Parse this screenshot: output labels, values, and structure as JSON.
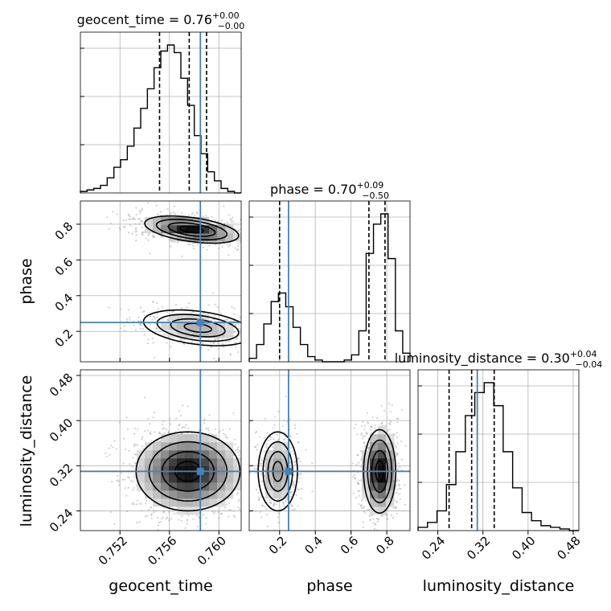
{
  "chart_data": {
    "type": "corner",
    "parameters": [
      "geocent_time",
      "phase",
      "luminosity_distance"
    ],
    "truth": {
      "geocent_time": 0.7585,
      "phase": 0.25,
      "luminosity_distance": 0.31
    },
    "ranges": {
      "geocent_time": [
        0.7488,
        0.7618
      ],
      "phase": [
        0.03,
        0.93
      ],
      "luminosity_distance": [
        0.205,
        0.49
      ]
    },
    "titles": {
      "geocent_time": {
        "label": "geocent_time = 0.76",
        "plus": "+0.00",
        "minus": "−0.00"
      },
      "phase": {
        "label": "phase = 0.70",
        "plus": "+0.09",
        "minus": "−0.50"
      },
      "luminosity_distance": {
        "label": "luminosity_distance = 0.30",
        "plus": "+0.04",
        "minus": "−0.04"
      }
    },
    "xlabels": [
      "geocent_time",
      "phase",
      "luminosity_distance"
    ],
    "ylabels": [
      "",
      "phase",
      "luminosity_distance"
    ],
    "ticks": {
      "geocent_time": {
        "values": [
          0.752,
          0.756,
          0.76
        ],
        "labels": [
          "0.752",
          "0.756",
          "0.760"
        ]
      },
      "phase": {
        "values": [
          0.2,
          0.4,
          0.6,
          0.8
        ],
        "labels": [
          "0.2",
          "0.4",
          "0.6",
          "0.8"
        ]
      },
      "luminosity_distance": {
        "values": [
          0.24,
          0.32,
          0.4,
          0.48
        ],
        "labels": [
          "0.24",
          "0.32",
          "0.40",
          "0.48"
        ]
      }
    },
    "quantiles": {
      "geocent_time": [
        0.7552,
        0.7576,
        0.759
      ],
      "phase": [
        0.2,
        0.7,
        0.79
      ],
      "luminosity_distance": [
        0.26,
        0.3,
        0.34
      ]
    },
    "histograms": {
      "geocent_time": {
        "edges_range": [
          0.7488,
          0.7618
        ],
        "counts": [
          1,
          2,
          3,
          5,
          10,
          17,
          22,
          31,
          43,
          56,
          69,
          83,
          94,
          98,
          93,
          76,
          58,
          38,
          26,
          14,
          8,
          3,
          1,
          0
        ]
      },
      "phase": {
        "edges_range": [
          0.03,
          0.93
        ],
        "counts": [
          2,
          10,
          22,
          35,
          40,
          32,
          20,
          10,
          3,
          1,
          0,
          0,
          0,
          1,
          4,
          18,
          63,
          80,
          86,
          60,
          18,
          5
        ]
      },
      "luminosity_distance": {
        "edges_range": [
          0.205,
          0.49
        ],
        "counts": [
          2,
          5,
          12,
          28,
          48,
          70,
          84,
          90,
          76,
          48,
          26,
          11,
          6,
          3,
          2,
          1,
          0
        ]
      }
    },
    "joint": [
      {
        "x": "geocent_time",
        "y": "phase",
        "clusters": [
          {
            "cx": 0.7578,
            "cy": 0.77,
            "sx": 0.0019,
            "sy": 0.038,
            "rho": -0.45,
            "weight": 0.66
          },
          {
            "cx": 0.7583,
            "cy": 0.22,
            "sx": 0.0022,
            "sy": 0.05,
            "rho": -0.35,
            "weight": 0.34
          }
        ]
      },
      {
        "x": "geocent_time",
        "y": "luminosity_distance",
        "clusters": [
          {
            "cx": 0.7575,
            "cy": 0.31,
            "sx": 0.0021,
            "sy": 0.035,
            "rho": 0.0,
            "weight": 1.0
          }
        ]
      },
      {
        "x": "phase",
        "y": "luminosity_distance",
        "clusters": [
          {
            "cx": 0.19,
            "cy": 0.31,
            "sx": 0.055,
            "sy": 0.035,
            "rho": 0.0,
            "weight": 0.3
          },
          {
            "cx": 0.76,
            "cy": 0.31,
            "sx": 0.045,
            "sy": 0.037,
            "rho": 0.0,
            "weight": 0.7
          }
        ]
      }
    ],
    "grid": true,
    "colors": {
      "truth": "#4682b4",
      "line": "#000000",
      "grid": "#b0b0b0"
    }
  }
}
